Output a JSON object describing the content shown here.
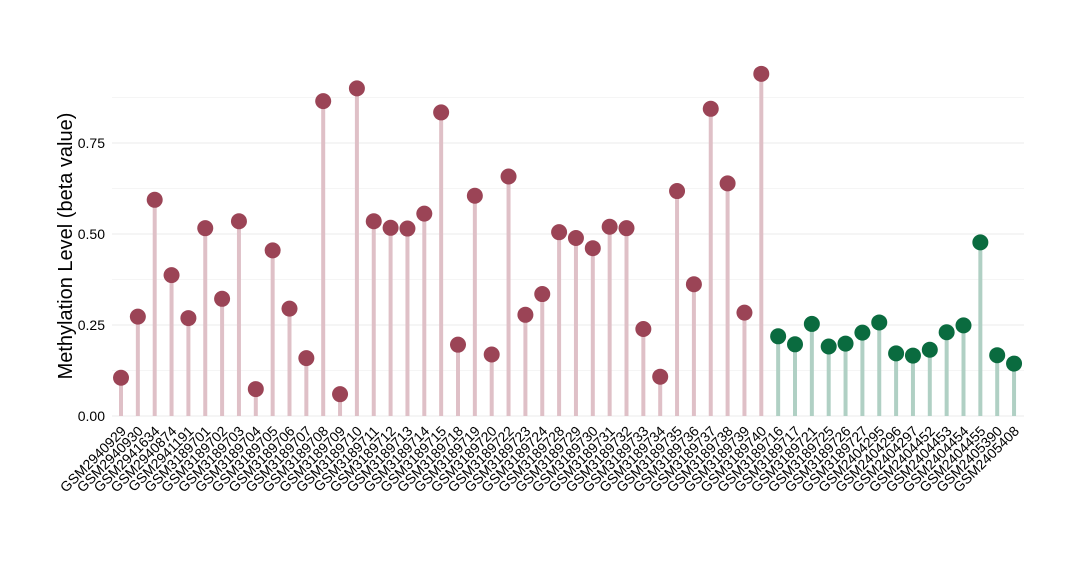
{
  "chart_data": {
    "type": "lollipop",
    "title": "",
    "xlabel": "",
    "ylabel": "Methylation Level (beta value)",
    "ylim": [
      0,
      1.0
    ],
    "yticks": [
      0.0,
      0.25,
      0.5,
      0.75
    ],
    "ytick_labels": [
      "0.00",
      "0.25",
      "0.50",
      "0.75"
    ],
    "grid": true,
    "legend": "none",
    "colors": {
      "group_a_point": "#9b4456",
      "group_a_stem": "#dfc0c7",
      "group_b_point": "#0a6b3f",
      "group_b_stem": "#b0d0c4"
    },
    "series": [
      {
        "group": "a",
        "categories": [
          "GSM2940929",
          "GSM2940930",
          "GSM2941634",
          "GSM2940874",
          "GSM2941191",
          "GSM3189701",
          "GSM3189702",
          "GSM3189703",
          "GSM3189704",
          "GSM3189705",
          "GSM3189706",
          "GSM3189707",
          "GSM3189708",
          "GSM3189709",
          "GSM3189710",
          "GSM3189711",
          "GSM3189712",
          "GSM3189713",
          "GSM3189714",
          "GSM3189715",
          "GSM3189718",
          "GSM3189719",
          "GSM3189720",
          "GSM3189722",
          "GSM3189723",
          "GSM3189724",
          "GSM3189728",
          "GSM3189729",
          "GSM3189730",
          "GSM3189731",
          "GSM3189732",
          "GSM3189733",
          "GSM3189734",
          "GSM3189735",
          "GSM3189736",
          "GSM3189737",
          "GSM3189738",
          "GSM3189739",
          "GSM3189740"
        ],
        "values": [
          0.105,
          0.273,
          0.594,
          0.387,
          0.269,
          0.516,
          0.322,
          0.535,
          0.074,
          0.455,
          0.295,
          0.159,
          0.865,
          0.06,
          0.9,
          0.535,
          0.517,
          0.515,
          0.556,
          0.834,
          0.196,
          0.605,
          0.169,
          0.658,
          0.278,
          0.335,
          0.505,
          0.489,
          0.461,
          0.52,
          0.516,
          0.239,
          0.108,
          0.618,
          0.362,
          0.844,
          0.639,
          0.284,
          0.94
        ]
      },
      {
        "group": "b",
        "categories": [
          "GSM3189716",
          "GSM3189717",
          "GSM3189721",
          "GSM3189725",
          "GSM3189726",
          "GSM3189727",
          "GSM2404295",
          "GSM2404296",
          "GSM2404297",
          "GSM2404452",
          "GSM2404453",
          "GSM2404454",
          "GSM2404455",
          "GSM2405390",
          "GSM2405408"
        ],
        "values": [
          0.219,
          0.197,
          0.253,
          0.191,
          0.199,
          0.229,
          0.257,
          0.172,
          0.166,
          0.182,
          0.23,
          0.249,
          0.477,
          0.167,
          0.144
        ]
      }
    ]
  }
}
